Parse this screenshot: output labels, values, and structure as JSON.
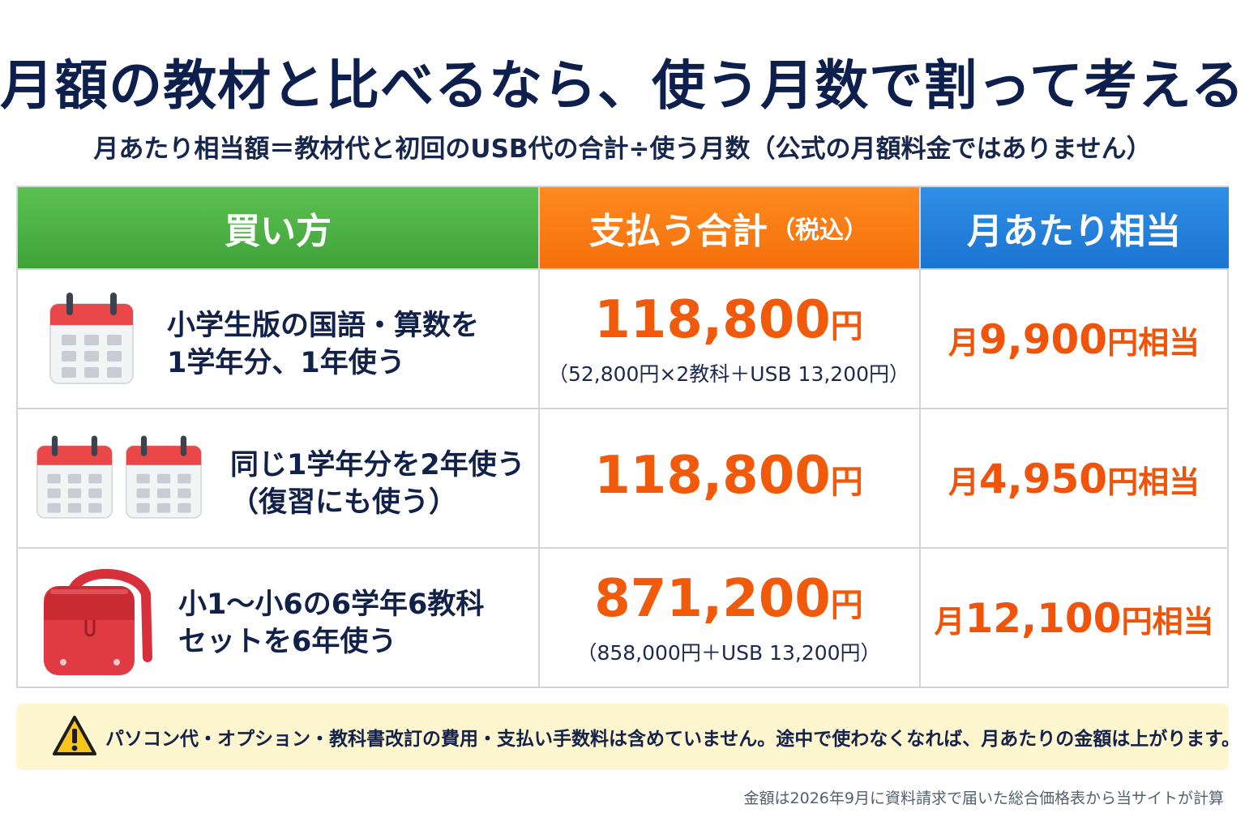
{
  "title": "月額の教材と比べるなら、使う月数で割って考える",
  "subtitle": "月あたり相当額＝教材代と初回のUSB代の合計÷使う月数（公式の月額料金ではありません）",
  "table": {
    "headers": {
      "method": "買い方",
      "total": "支払う合計",
      "total_note": "（税込）",
      "monthly": "月あたり相当"
    },
    "rows": [
      {
        "icon": "calendar-icon",
        "method_line1": "小学生版の国語・算数を",
        "method_line2": "1学年分、1年使う",
        "total_value": "118,800",
        "total_unit": "円",
        "total_detail": "（52,800円×2教科＋USB 13,200円）",
        "monthly_prefix": "月",
        "monthly_value": "9,900",
        "monthly_suffix": "円相当"
      },
      {
        "icon": "two-calendars-icon",
        "method_line1": "同じ1学年分を2年使う",
        "method_line2": "（復習にも使う）",
        "total_value": "118,800",
        "total_unit": "円",
        "total_detail": "",
        "monthly_prefix": "月",
        "monthly_value": "4,950",
        "monthly_suffix": "円相当"
      },
      {
        "icon": "school-backpack-icon",
        "method_line1": "小1〜小6の6学年6教科",
        "method_line2": "セットを6年使う",
        "total_value": "871,200",
        "total_unit": "円",
        "total_detail": "（858,000円＋USB 13,200円）",
        "monthly_prefix": "月",
        "monthly_value": "12,100",
        "monthly_suffix": "円相当"
      }
    ]
  },
  "note": {
    "icon": "warning-icon",
    "text": "パソコン代・オプション・教科書改訂の費用・支払い手数料は含めていません。途中で使わなくなれば、月あたりの金額は上がります。"
  },
  "footer": "金額は2026年9月に資料請求で届いた総合価格表から当サイトが計算",
  "colors": {
    "header_method": "#4cb447",
    "header_total": "#f87a12",
    "header_monthly": "#2282dd",
    "price": "#f05a0a",
    "note_bg": "#fdf6cf"
  }
}
